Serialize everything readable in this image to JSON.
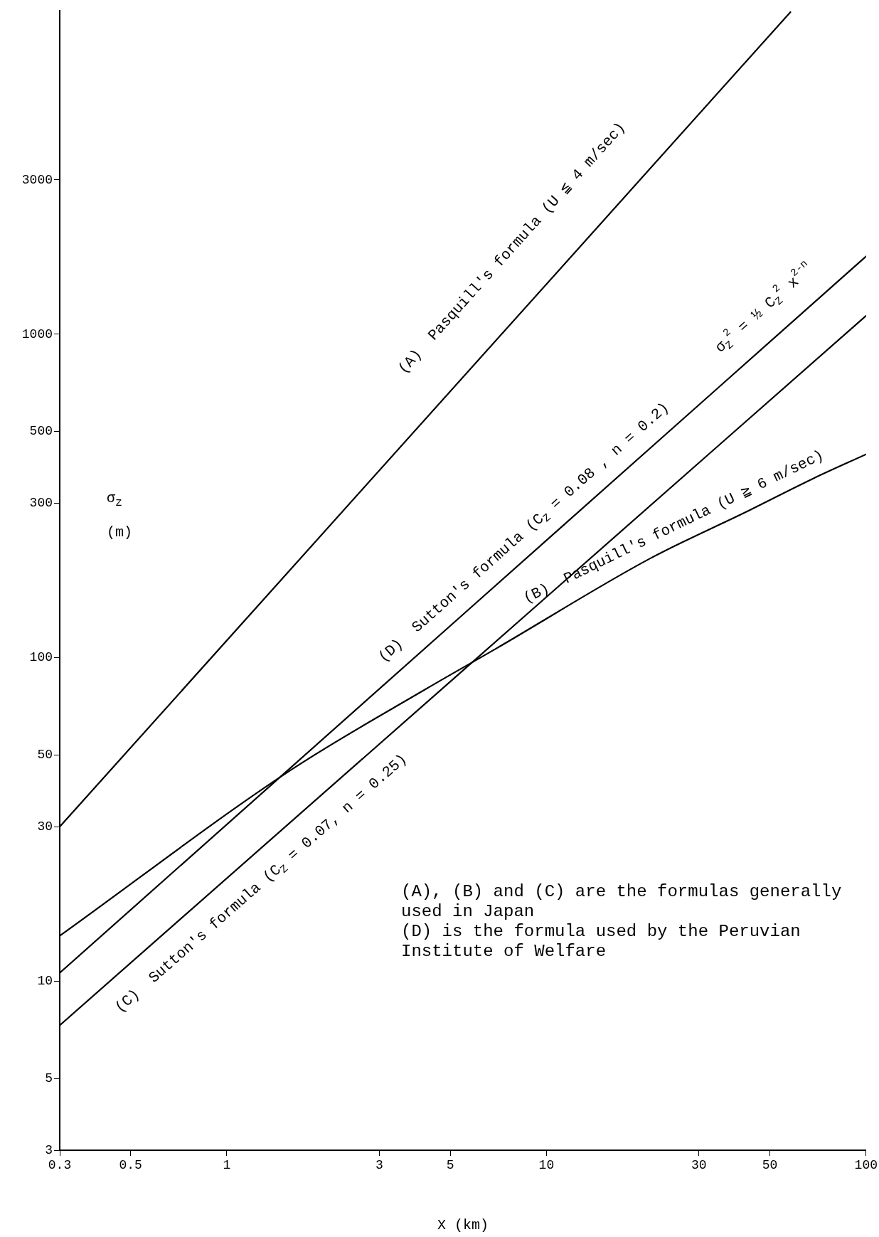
{
  "chart_data": {
    "type": "line",
    "xlabel": "X (km)",
    "ylabel": "σ$_{z}$ (m)",
    "log": "xy",
    "xlim": [
      0.3,
      100
    ],
    "ylim": [
      3,
      10000
    ],
    "xticks": [
      0.3,
      0.5,
      1,
      3,
      5,
      10,
      30,
      50,
      100
    ],
    "yticks": [
      3,
      5,
      10,
      30,
      50,
      100,
      300,
      500,
      1000,
      3000
    ],
    "grid": false,
    "legend": false,
    "series": [
      {
        "color": "#000000",
        "x": [
          0.3,
          58
        ],
        "values": [
          30,
          9900
        ]
      },
      {
        "color": "#000000",
        "x": [
          0.3,
          1.59,
          4.2,
          7,
          21,
          43,
          68,
          100
        ],
        "values": [
          13.8,
          45,
          80,
          107,
          202,
          285,
          357,
          425
        ]
      },
      {
        "color": "#000000",
        "x": [
          0.3,
          100
        ],
        "values": [
          7.3,
          1140
        ]
      },
      {
        "color": "#000000",
        "x": [
          0.3,
          100
        ],
        "values": [
          10.6,
          1740
        ]
      }
    ],
    "annotations": [
      {
        "text": "(A)  Pasquill's formula (U ≦ 4 m/sec)",
        "x": 7.8,
        "y": 1083
      },
      {
        "text": "(B)  Pasquill's formula (U ≧ 6 m/sec)",
        "x": 25,
        "y": 220
      },
      {
        "text": "(C)  Sutton's formula (C$_{Z}$ = 0.07, n = 0.25)",
        "x": 1.28,
        "y": 25.8
      },
      {
        "text": "(D)  Sutton's formula (C$_{Z}$ = 0.08 , n = 0.2)",
        "x": 8.5,
        "y": 200
      },
      {
        "text": "σ$_{Z}$$^{2}$ = ½ C$_{Z}$$^{2}$ x$^{2-n}$",
        "x": 48,
        "y": 913
      },
      "(A), (B) and (C) are the formulas generally used in Japan",
      "(D) is the formula used by the Peruvian Institute of Welfare"
    ]
  }
}
